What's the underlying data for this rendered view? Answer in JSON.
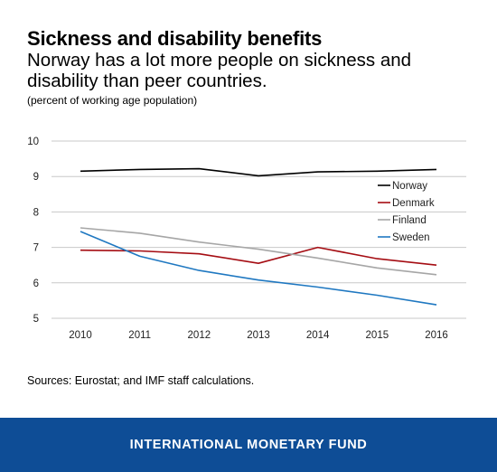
{
  "title": "Sickness and disability benefits",
  "subtitle": "Norway has a lot more people on sickness and disability than peer countries.",
  "units_note": "(percent of working age population)",
  "source": "Sources: Eurostat; and IMF staff calculations.",
  "footer": "INTERNATIONAL MONETARY FUND",
  "colors": {
    "footer_bg": "#0e4d96",
    "norway": "#000000",
    "denmark": "#a50d13",
    "finland": "#a6a6a6",
    "sweden": "#1f78c1"
  },
  "chart_data": {
    "type": "line",
    "title": "",
    "xlabel": "",
    "ylabel": "",
    "x": [
      "2010",
      "2011",
      "2012",
      "2013",
      "2014",
      "2015",
      "2016"
    ],
    "ylim": [
      5,
      10
    ],
    "yticks": [
      "5",
      "6",
      "7",
      "8",
      "9",
      "10"
    ],
    "grid": true,
    "legend_position": "right",
    "series": [
      {
        "name": "Norway",
        "color": "#000000",
        "values": [
          9.15,
          9.2,
          9.22,
          9.02,
          9.13,
          9.15,
          9.2
        ]
      },
      {
        "name": "Denmark",
        "color": "#a50d13",
        "values": [
          6.92,
          6.9,
          6.82,
          6.55,
          7.0,
          6.68,
          6.5
        ]
      },
      {
        "name": "Finland",
        "color": "#a6a6a6",
        "values": [
          7.55,
          7.4,
          7.15,
          6.95,
          6.7,
          6.42,
          6.23
        ]
      },
      {
        "name": "Sweden",
        "color": "#1f78c1",
        "values": [
          7.45,
          6.75,
          6.35,
          6.08,
          5.88,
          5.65,
          5.38
        ]
      }
    ]
  }
}
